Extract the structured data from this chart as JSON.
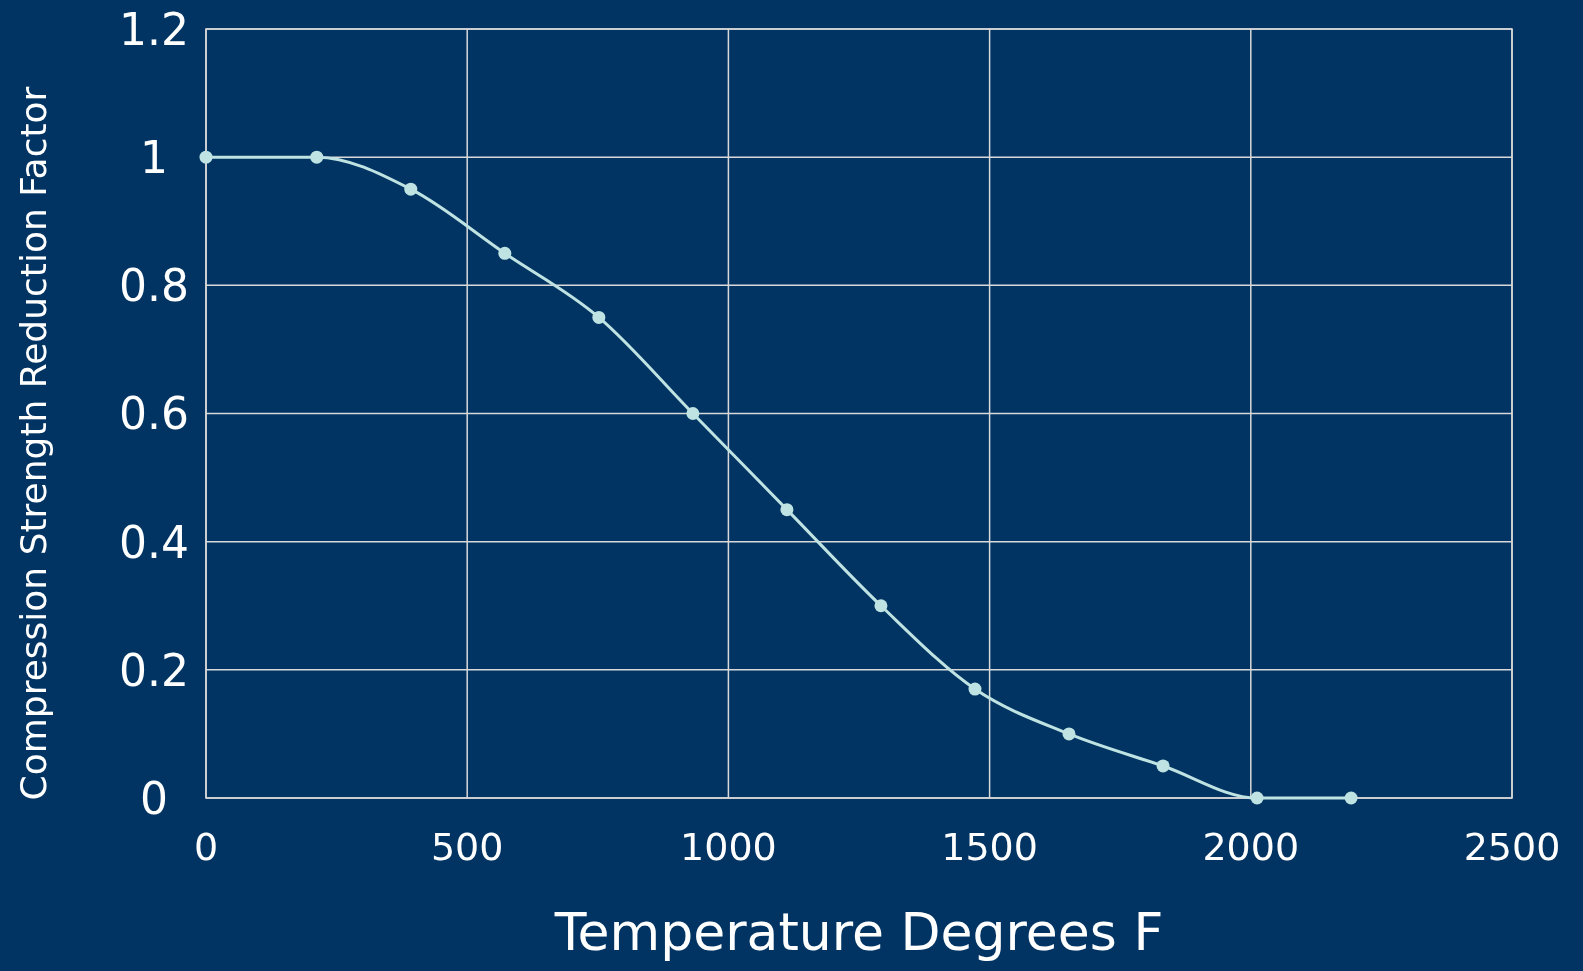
{
  "chart_data": {
    "type": "line",
    "xlabel": "Temperature Degrees F",
    "ylabel": "Compression Strength Reduction Factor",
    "x": [
      0,
      212,
      392,
      572,
      752,
      932,
      1112,
      1292,
      1472,
      1652,
      1832,
      2012,
      2192
    ],
    "series": [
      {
        "color": "#bfe3e3",
        "values": [
          1,
          1,
          0.95,
          0.85,
          0.75,
          0.6,
          0.45,
          0.3,
          0.17,
          0.1,
          0.05,
          0,
          0
        ]
      }
    ],
    "xlim": [
      0,
      2500
    ],
    "xticks": [
      0,
      500,
      1000,
      1500,
      2000,
      2500
    ],
    "ylim": [
      0,
      1.2
    ],
    "yticks": [
      0,
      0.2,
      0.4,
      0.6,
      0.8,
      1,
      1.2
    ],
    "grid": true,
    "marker": "circle"
  }
}
